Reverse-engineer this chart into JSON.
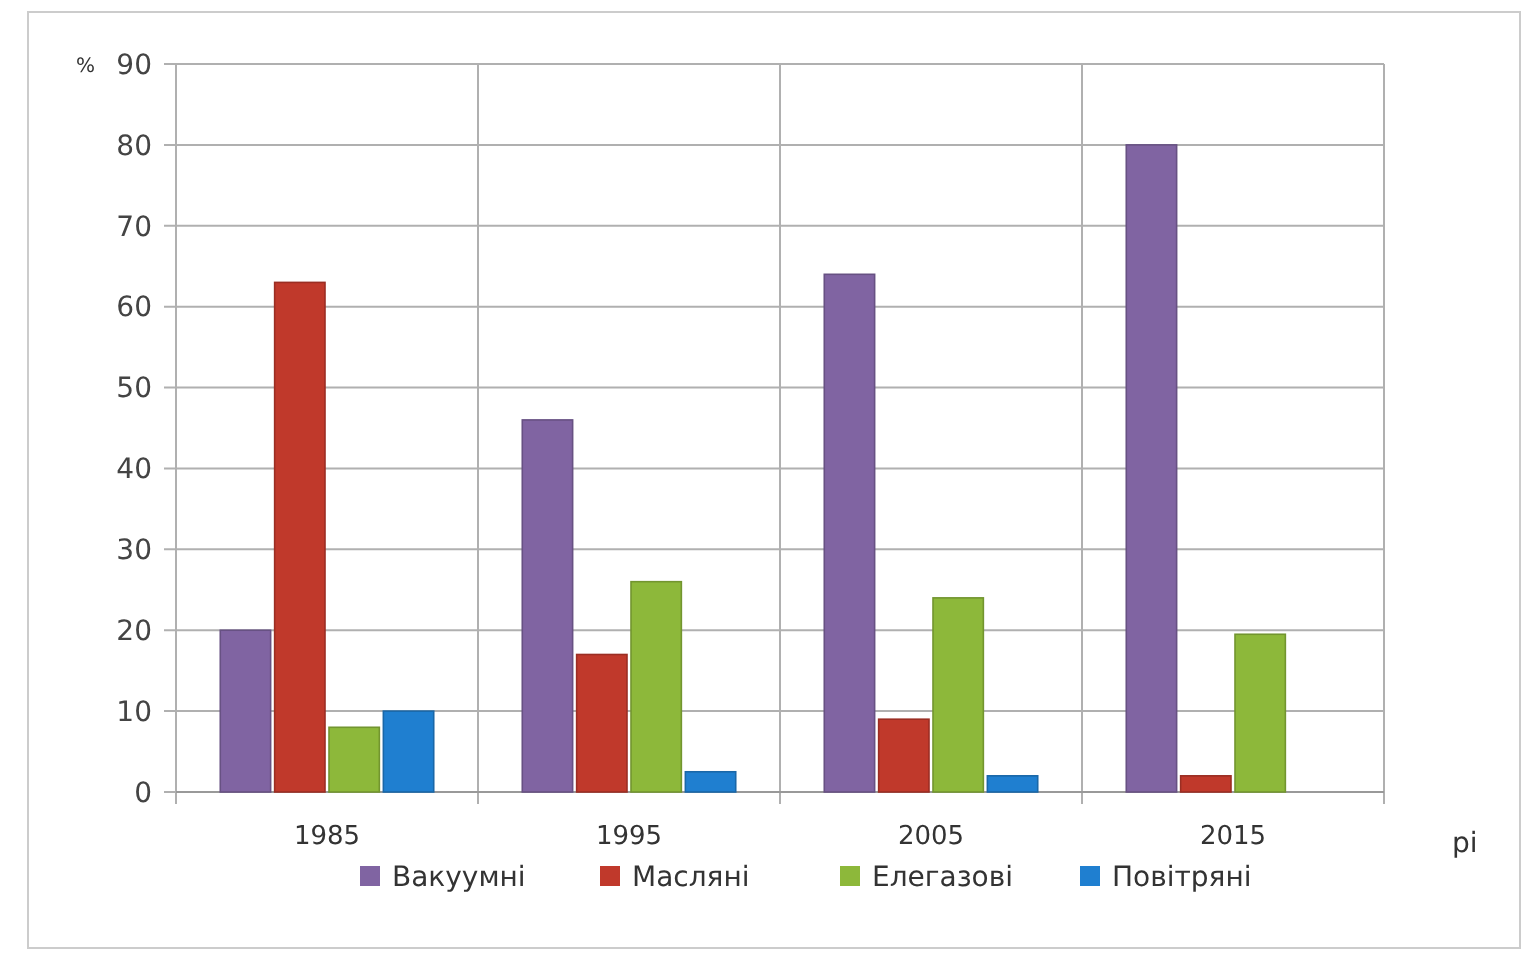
{
  "chart_data": {
    "type": "bar",
    "ylabel": "%",
    "xlabel": "рі",
    "categories": [
      "1985",
      "1995",
      "2005",
      "2015"
    ],
    "series": [
      {
        "name": "Вакуумні",
        "color": "#8064a2",
        "values": [
          20,
          46,
          64,
          80
        ]
      },
      {
        "name": "Масляні",
        "color": "#c0392b",
        "values": [
          63,
          17,
          9,
          2
        ]
      },
      {
        "name": "Елегазові",
        "color": "#8db83a",
        "values": [
          8,
          26,
          24,
          19.5
        ]
      },
      {
        "name": "Повітряні",
        "color": "#1f7fd0",
        "values": [
          10,
          2.5,
          2,
          null
        ]
      }
    ],
    "ylim": [
      0,
      90
    ],
    "yticks": [
      0,
      10,
      20,
      30,
      40,
      50,
      60,
      70,
      80,
      90
    ],
    "grid": true,
    "legend": "bottom"
  }
}
